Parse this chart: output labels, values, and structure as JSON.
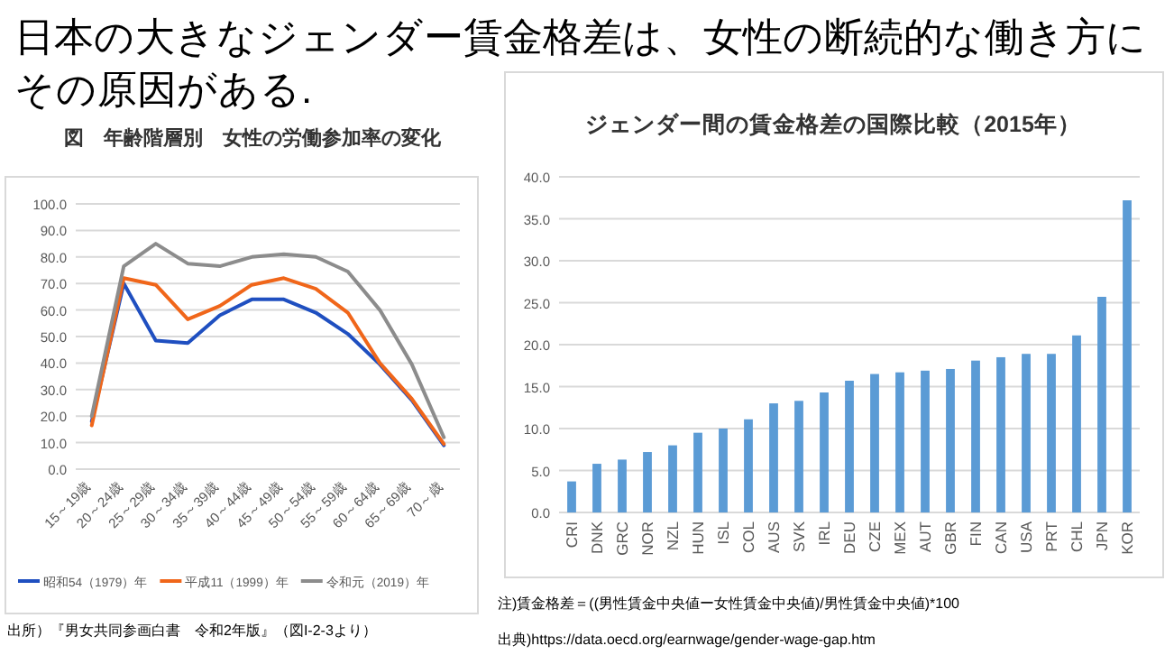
{
  "chart_data": [
    {
      "type": "other",
      "title": "日本の大きなジェンダー賃金格差は、女性の断続的な働き方にその原因がある."
    },
    {
      "type": "line",
      "title": "図　年齢階層別　女性の労働参加率の変化",
      "categories": [
        "15～19歳",
        "20～24歳",
        "25～29歳",
        "30～34歳",
        "35～39歳",
        "40～44歳",
        "45～49歳",
        "50～54歳",
        "55～59歳",
        "60～64歳",
        "65～69歳",
        "70～歳"
      ],
      "series": [
        {
          "name": "昭和54（1979）年",
          "color": "#1f4fc0",
          "values": [
            18,
            70,
            48.5,
            47.5,
            58,
            64,
            64,
            59,
            51,
            39.5,
            26,
            9
          ]
        },
        {
          "name": "平成11（1999）年",
          "color": "#f0661a",
          "values": [
            16.5,
            72,
            69.5,
            56.5,
            61.5,
            69.5,
            72,
            68,
            59,
            40,
            26.5,
            9.5
          ]
        },
        {
          "name": "令和元（2019）年",
          "color": "#8c8c8c",
          "values": [
            20,
            76.5,
            85,
            77.5,
            76.5,
            80,
            81,
            80,
            74.5,
            60,
            39.5,
            12
          ]
        }
      ],
      "ylim": [
        0,
        100
      ],
      "yticks": [
        {
          "value": 0,
          "label": "0.0"
        },
        {
          "value": 10,
          "label": "10.0"
        },
        {
          "value": 20,
          "label": "20.0"
        },
        {
          "value": 30,
          "label": "30.0"
        },
        {
          "value": 40,
          "label": "40.0"
        },
        {
          "value": 50,
          "label": "50.0"
        },
        {
          "value": 60,
          "label": "60.0"
        },
        {
          "value": 70,
          "label": "70.0"
        },
        {
          "value": 80,
          "label": "80.0"
        },
        {
          "value": 90,
          "label": "90.0"
        },
        {
          "value": 100,
          "label": "100.0"
        }
      ],
      "grid": "y",
      "legend": "bottom",
      "marker": "none",
      "line_style": "solid",
      "annotations": [
        "出所）『男女共同参画白書　令和2年版』（図I-2-3より）"
      ]
    },
    {
      "type": "bar",
      "title": "ジェンダー間の賃金格差の国際比較（2015年）",
      "categories": [
        "CRI",
        "DNK",
        "GRC",
        "NOR",
        "NZL",
        "HUN",
        "ISL",
        "COL",
        "AUS",
        "SVK",
        "IRL",
        "DEU",
        "CZE",
        "MEX",
        "AUT",
        "GBR",
        "FIN",
        "CAN",
        "USA",
        "PRT",
        "CHL",
        "JPN",
        "KOR"
      ],
      "values": [
        3.7,
        5.8,
        6.3,
        7.2,
        8.0,
        9.5,
        10.0,
        11.1,
        13.0,
        13.3,
        14.3,
        15.7,
        16.5,
        16.7,
        16.9,
        17.1,
        18.1,
        18.5,
        18.9,
        18.9,
        21.1,
        25.7,
        37.2
      ],
      "color": "#5b9bd5",
      "ylim": [
        0,
        40
      ],
      "yticks": [
        {
          "value": 0,
          "label": "0.0"
        },
        {
          "value": 5,
          "label": "5.0"
        },
        {
          "value": 10,
          "label": "10.0"
        },
        {
          "value": 15,
          "label": "15.0"
        },
        {
          "value": 20,
          "label": "20.0"
        },
        {
          "value": 25,
          "label": "25.0"
        },
        {
          "value": 30,
          "label": "30.0"
        },
        {
          "value": 35,
          "label": "35.0"
        },
        {
          "value": 40,
          "label": "40.0"
        }
      ],
      "grid": "y",
      "annotations": [
        "注)賃金格差＝((男性賃金中央値ー女性賃金中央値)/男性賃金中央値)*100",
        "出典)https://data.oecd.org/earnwage/gender-wage-gap.htm"
      ]
    }
  ]
}
